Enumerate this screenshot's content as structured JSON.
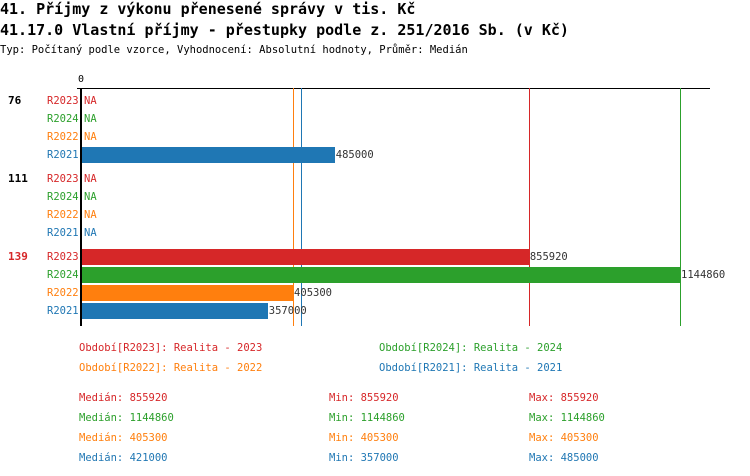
{
  "header": {
    "title": "41. Příjmy z výkonu přenesené správy v tis. Kč",
    "subtitle": "41.17.0 Vlastní příjmy - přestupky podle z. 251/2016 Sb. (v Kč)",
    "info": "Typ: Počítaný podle vzorce, Vyhodnocení: Absolutní hodnoty, Průměr: Medián"
  },
  "chart_data": {
    "type": "bar",
    "orientation": "horizontal",
    "xlim": [
      0,
      1144860
    ],
    "zero_label": "0",
    "series_colors": {
      "R2023": "#d62728",
      "R2024": "#2ca02c",
      "R2022": "#ff7f0e",
      "R2021": "#1f77b4"
    },
    "groups": [
      {
        "label": "76",
        "highlight": false,
        "rows": [
          {
            "series": "R2023",
            "value": null,
            "text": "NA"
          },
          {
            "series": "R2024",
            "value": null,
            "text": "NA"
          },
          {
            "series": "R2022",
            "value": null,
            "text": "NA"
          },
          {
            "series": "R2021",
            "value": 485000,
            "text": "485000"
          }
        ]
      },
      {
        "label": "111",
        "highlight": false,
        "rows": [
          {
            "series": "R2023",
            "value": null,
            "text": "NA"
          },
          {
            "series": "R2024",
            "value": null,
            "text": "NA"
          },
          {
            "series": "R2022",
            "value": null,
            "text": "NA"
          },
          {
            "series": "R2021",
            "value": null,
            "text": "NA"
          }
        ]
      },
      {
        "label": "139",
        "highlight": true,
        "rows": [
          {
            "series": "R2023",
            "value": 855920,
            "text": "855920"
          },
          {
            "series": "R2024",
            "value": 1144860,
            "text": "1144860"
          },
          {
            "series": "R2022",
            "value": 405300,
            "text": "405300"
          },
          {
            "series": "R2021",
            "value": 357000,
            "text": "357000"
          }
        ]
      }
    ],
    "median_lines": [
      {
        "series": "R2023",
        "value": 855920
      },
      {
        "series": "R2024",
        "value": 1144860
      },
      {
        "series": "R2022",
        "value": 405300
      },
      {
        "series": "R2021",
        "value": 421000
      }
    ],
    "legend": [
      {
        "series": "R2023",
        "text": "Období[R2023]: Realita - 2023"
      },
      {
        "series": "R2024",
        "text": "Období[R2024]: Realita - 2024"
      },
      {
        "series": "R2022",
        "text": "Období[R2022]: Realita - 2022"
      },
      {
        "series": "R2021",
        "text": "Období[R2021]: Realita - 2021"
      }
    ],
    "stats": [
      {
        "series": "R2023",
        "median": "Medián: 855920",
        "min": "Min: 855920",
        "max": "Max: 855920"
      },
      {
        "series": "R2024",
        "median": "Medián: 1144860",
        "min": "Min: 1144860",
        "max": "Max: 1144860"
      },
      {
        "series": "R2022",
        "median": "Medián: 405300",
        "min": "Min: 405300",
        "max": "Max: 405300"
      },
      {
        "series": "R2021",
        "median": "Medián: 421000",
        "min": "Min: 357000",
        "max": "Max: 485000"
      }
    ]
  }
}
